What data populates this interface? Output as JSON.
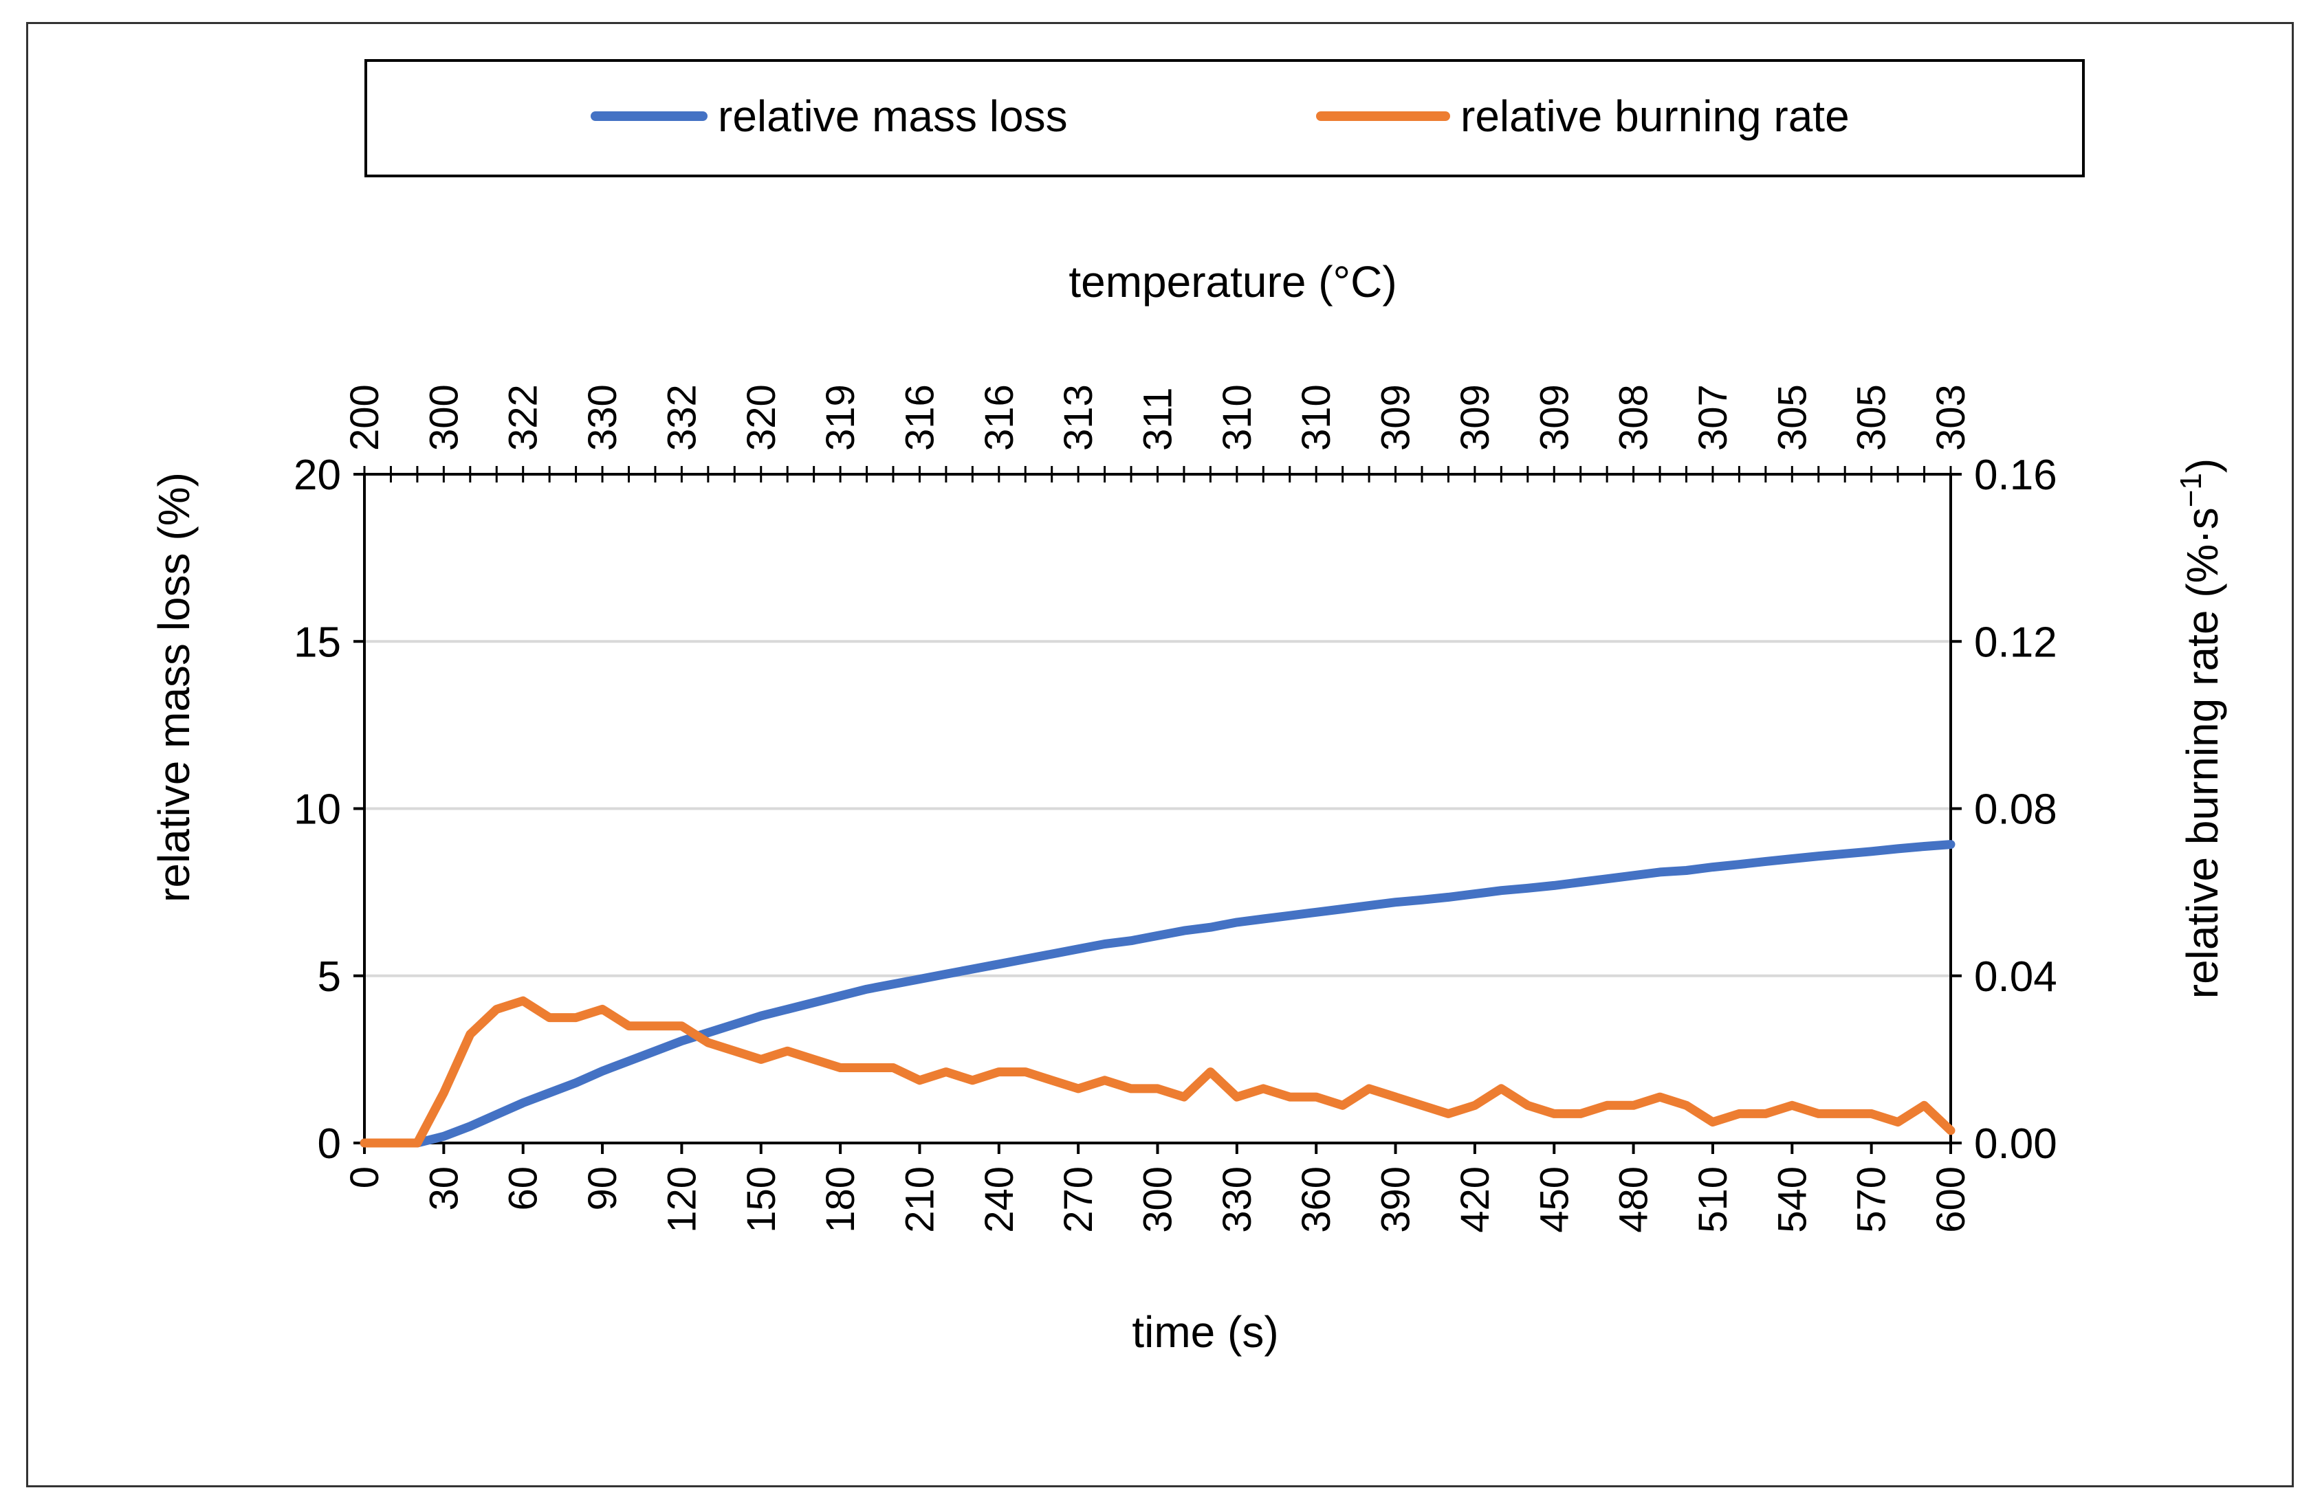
{
  "chart_data": {
    "type": "line",
    "legend": {
      "placement": "top",
      "entries": [
        {
          "label": "relative mass loss",
          "color": "#4472C4"
        },
        {
          "label": "relative burning rate",
          "color": "#ED7D31"
        }
      ]
    },
    "xlabel": "time (s)",
    "top_axis_label": "temperature (°C)",
    "ylabel_left": "relative mass loss (%)",
    "ylabel_right_prefix": "relative burning rate (%·s",
    "ylabel_right_sup": "−1",
    "ylabel_right_suffix": ")",
    "xlim": [
      0,
      600
    ],
    "ylim_left": [
      0,
      20
    ],
    "ylim_right": [
      0,
      0.16
    ],
    "x_ticks": [
      "0",
      "30",
      "60",
      "90",
      "120",
      "150",
      "180",
      "210",
      "240",
      "270",
      "300",
      "330",
      "360",
      "390",
      "420",
      "450",
      "480",
      "510",
      "540",
      "570",
      "600"
    ],
    "y_left_ticks": [
      "0",
      "5",
      "10",
      "15",
      "20"
    ],
    "y_right_ticks": [
      "0.00",
      "0.04",
      "0.08",
      "0.12",
      "0.16"
    ],
    "top_ticks": [
      "200",
      "300",
      "322",
      "330",
      "332",
      "320",
      "319",
      "316",
      "316",
      "313",
      "311",
      "310",
      "310",
      "309",
      "309",
      "309",
      "308",
      "307",
      "305",
      "305",
      "303"
    ],
    "grid": true,
    "x": [
      0,
      10,
      20,
      30,
      40,
      50,
      60,
      70,
      80,
      90,
      100,
      110,
      120,
      130,
      140,
      150,
      160,
      170,
      180,
      190,
      200,
      210,
      220,
      230,
      240,
      250,
      260,
      270,
      280,
      290,
      300,
      310,
      320,
      330,
      340,
      350,
      360,
      370,
      380,
      390,
      400,
      410,
      420,
      430,
      440,
      450,
      460,
      470,
      480,
      490,
      500,
      510,
      520,
      530,
      540,
      550,
      560,
      570,
      580,
      590,
      600
    ],
    "series": [
      {
        "name": "relative mass loss",
        "axis": "left",
        "color": "#4472C4",
        "values": [
          0,
          0,
          0,
          0.2,
          0.5,
          0.85,
          1.2,
          1.5,
          1.8,
          2.15,
          2.45,
          2.75,
          3.05,
          3.3,
          3.55,
          3.8,
          4.0,
          4.2,
          4.4,
          4.6,
          4.75,
          4.9,
          5.05,
          5.2,
          5.35,
          5.5,
          5.65,
          5.8,
          5.95,
          6.05,
          6.2,
          6.35,
          6.45,
          6.6,
          6.7,
          6.8,
          6.9,
          7.0,
          7.1,
          7.2,
          7.27,
          7.35,
          7.45,
          7.55,
          7.62,
          7.7,
          7.8,
          7.9,
          8.0,
          8.1,
          8.15,
          8.25,
          8.33,
          8.42,
          8.5,
          8.58,
          8.65,
          8.72,
          8.8,
          8.87,
          8.93
        ]
      },
      {
        "name": "relative burning rate",
        "axis": "right",
        "color": "#ED7D31",
        "values": [
          0,
          0,
          0,
          0.012,
          0.026,
          0.032,
          0.034,
          0.03,
          0.03,
          0.032,
          0.028,
          0.028,
          0.028,
          0.024,
          0.022,
          0.02,
          0.022,
          0.02,
          0.018,
          0.018,
          0.018,
          0.015,
          0.017,
          0.015,
          0.017,
          0.017,
          0.015,
          0.013,
          0.015,
          0.013,
          0.013,
          0.011,
          0.017,
          0.011,
          0.013,
          0.011,
          0.011,
          0.009,
          0.013,
          0.011,
          0.009,
          0.007,
          0.009,
          0.013,
          0.009,
          0.007,
          0.007,
          0.009,
          0.009,
          0.011,
          0.009,
          0.005,
          0.007,
          0.007,
          0.009,
          0.007,
          0.007,
          0.007,
          0.005,
          0.009,
          0.003
        ]
      }
    ]
  }
}
